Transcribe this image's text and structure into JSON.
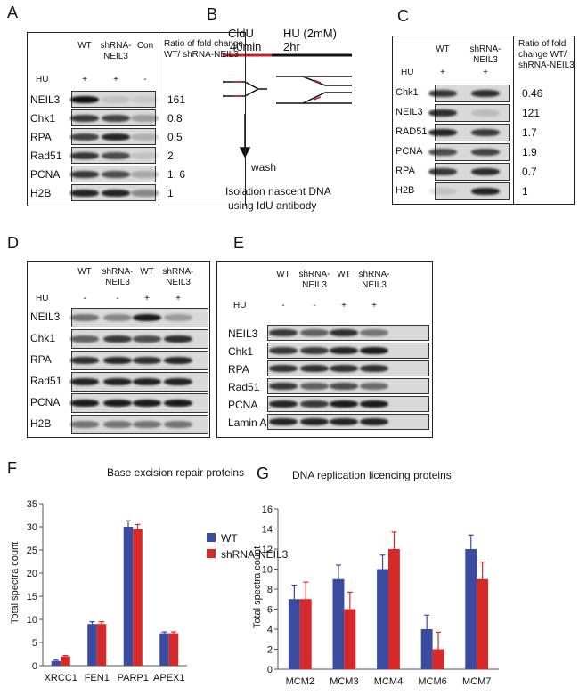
{
  "panels": {
    "A": {
      "letter": "A",
      "columns": [
        "WT",
        "shRNA-NEIL3",
        "Con"
      ],
      "hu_label": "HU",
      "hu": [
        "+",
        "+",
        "-"
      ],
      "ratio_header": "Ratio of fold change WT/ shRNA-NEIL3",
      "rows": [
        {
          "protein": "NEIL3",
          "ratio": "161"
        },
        {
          "protein": "Chk1",
          "ratio": "0.8"
        },
        {
          "protein": "RPA",
          "ratio": "0.5"
        },
        {
          "protein": "Rad51",
          "ratio": "2"
        },
        {
          "protein": "PCNA",
          "ratio": "1. 6"
        },
        {
          "protein": "H2B",
          "ratio": "1"
        }
      ]
    },
    "B": {
      "letter": "B",
      "cldu": "CldU",
      "cldu_time": "40min",
      "hu": "HU (2mM)",
      "hu_time": "2hr",
      "wash": "wash",
      "isolation": [
        "Isolation nascent DNA",
        "using IdU antibody"
      ]
    },
    "C": {
      "letter": "C",
      "columns": [
        "WT",
        "shRNA-NEIL3"
      ],
      "hu_label": "HU",
      "hu": [
        "+",
        "+"
      ],
      "ratio_header": "Ratio of fold change WT/ shRNA-NEIL3",
      "rows": [
        {
          "protein": "Chk1",
          "ratio": "0.46"
        },
        {
          "protein": "NEIL3",
          "ratio": "121"
        },
        {
          "protein": "RAD51",
          "ratio": "1.7"
        },
        {
          "protein": "PCNA",
          "ratio": "1.9"
        },
        {
          "protein": "RPA",
          "ratio": "0.7"
        },
        {
          "protein": "H2B",
          "ratio": "1"
        }
      ]
    },
    "D": {
      "letter": "D",
      "columns": [
        "WT",
        "shRNA-NEIL3",
        "WT",
        "shRNA-NEIL3"
      ],
      "hu_label": "HU",
      "hu": [
        "-",
        "-",
        "+",
        "+"
      ],
      "rows": [
        {
          "protein": "NEIL3"
        },
        {
          "protein": "Chk1"
        },
        {
          "protein": "RPA"
        },
        {
          "protein": "Rad51"
        },
        {
          "protein": "PCNA"
        },
        {
          "protein": "H2B"
        }
      ]
    },
    "E": {
      "letter": "E",
      "columns": [
        "WT",
        "shRNA-NEIL3",
        "WT",
        "shRNA-NEIL3"
      ],
      "hu_label": "HU",
      "hu": [
        "-",
        "-",
        "+",
        "+"
      ],
      "rows": [
        {
          "protein": "NEIL3"
        },
        {
          "protein": "Chk1"
        },
        {
          "protein": "RPA"
        },
        {
          "protein": "Rad51"
        },
        {
          "protein": "PCNA"
        },
        {
          "protein": "Lamin A"
        }
      ]
    }
  },
  "chart_data": [
    {
      "type": "bar",
      "label": "F",
      "title": "Base excision repair proteins",
      "y_label": "Total spectra count",
      "categories": [
        "XRCC1",
        "FEN1",
        "PARP1",
        "APEX1"
      ],
      "series": [
        {
          "name": "WT",
          "color": "#3b4ba0",
          "values": [
            1,
            9,
            30,
            7
          ],
          "errors": [
            0.2,
            0.5,
            1.3,
            0.3
          ]
        },
        {
          "name": "shRNA-NEIL3",
          "color": "#d62a2a",
          "values": [
            2,
            9,
            29.5,
            7
          ],
          "errors": [
            0.2,
            0.5,
            1,
            0.3
          ]
        }
      ],
      "ylim": [
        0,
        35
      ],
      "yticks": [
        0,
        5,
        10,
        15,
        20,
        25,
        30,
        35
      ],
      "legend": "right"
    },
    {
      "type": "bar",
      "label": "G",
      "title": "DNA replication licencing proteins",
      "y_label": "Total spectra count",
      "categories": [
        "MCM2",
        "MCM3",
        "MCM4",
        "MCM6",
        "MCM7"
      ],
      "series": [
        {
          "name": "WT",
          "color": "#3b4ba0",
          "values": [
            7,
            9,
            10,
            4,
            12
          ],
          "errors": [
            1.4,
            1.4,
            1.4,
            1.4,
            1.4
          ]
        },
        {
          "name": "shRNA-NEIL3",
          "color": "#d62a2a",
          "values": [
            7,
            6,
            12,
            2,
            9
          ],
          "errors": [
            1.7,
            1.7,
            1.7,
            1.7,
            1.7
          ]
        }
      ],
      "ylim": [
        0,
        16
      ],
      "yticks": [
        0,
        2,
        4,
        6,
        8,
        10,
        12,
        14,
        16
      ]
    }
  ]
}
